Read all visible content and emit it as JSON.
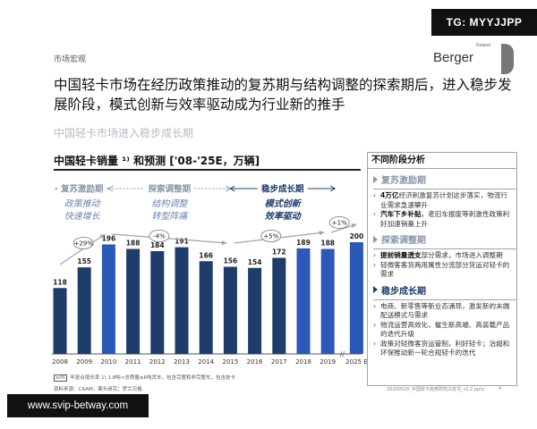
{
  "header": {
    "section": "市场宏观",
    "badge": "TG: MYYJJPP",
    "logo_small": "Roland",
    "logo_big": "Berger"
  },
  "headline": "中国轻卡市场在经历政策推动的复苏期与结构调整的探索期后，进入稳步发展阶段，模式创新与效率驱动成为行业新的推手",
  "subheadline": "中国轻卡市场进入稳步成长期",
  "chart_title": "中国轻卡销量 ¹⁾ 和预测 ['08-'25E，万辆]",
  "chart_data": {
    "type": "bar",
    "title": "中国轻卡销量 ¹⁾ 和预测 ['08-'25E，万辆]",
    "categories": [
      "2008",
      "2009",
      "2010",
      "2011",
      "2012",
      "2013",
      "2014",
      "2015",
      "2016",
      "2017",
      "2018",
      "2019",
      "2025 E"
    ],
    "values": [
      118,
      155,
      196,
      188,
      184,
      191,
      166,
      156,
      154,
      172,
      189,
      188,
      200
    ],
    "unit": "万辆",
    "ylim": [
      0,
      210
    ],
    "colors": {
      "bar_normal": "#1e3d6a",
      "bar_highlight": "#2a59b8",
      "muted": "#8b96a8"
    },
    "phases": [
      {
        "name": "复苏激励期",
        "drivers": [
          "政策推动",
          "快速增长"
        ],
        "cagr": "+29%",
        "from": "2008",
        "to": "2010"
      },
      {
        "name": "探索调整期",
        "drivers": [
          "结构调整",
          "转型阵痛"
        ],
        "cagr": "-4%",
        "from": "2010",
        "to": "2015"
      },
      {
        "name": "稳步成长期",
        "drivers": [
          "模式创新",
          "效率驱动"
        ],
        "cagr": "+5%",
        "from": "2015",
        "to": "2019"
      }
    ],
    "forecast_cagr": "+1%",
    "axis_break": "//"
  },
  "panel": {
    "title": "不同阶段分析",
    "phases": [
      {
        "name": "复苏激励期",
        "muted": true,
        "bullets": [
          {
            "bold": "4万亿",
            "text": "经济刺激复苏计划这步落实，物流行业需求急速攀升"
          },
          {
            "bold": "汽车下乡补贴",
            "text": "，老旧车报废等刺激性政策利好加速销量上升"
          }
        ]
      },
      {
        "name": "探索调整期",
        "muted": true,
        "bullets": [
          {
            "bold": "提前销量透支",
            "text": "部分需求，市场进入调整期"
          },
          {
            "bold": "",
            "text": "轻微客客货两用属性分流部分货运对轻卡的需求"
          }
        ]
      },
      {
        "name": "稳步成长期",
        "muted": false,
        "bullets": [
          {
            "bold": "",
            "text": "电商、新零售等新业态涌现，激发新的末端配送模式与需求"
          },
          {
            "bold": "",
            "text": "物流运营高效化，催生新高端、高装载产品的迭代升级"
          },
          {
            "bold": "",
            "text": "政策对轻微客货运管制，利好轻卡；治超和环保推动新一轮合规轻卡的迭代"
          }
        ]
      }
    ]
  },
  "footnote": {
    "box": "xx%",
    "text": "年复合增长率 1) 1.8吨<总质量≤6吨货车，包含完整和非完整车，包含皮卡"
  },
  "source": "资料来源：CAAM，案头研究；罗兰贝格",
  "docref": "20200520_中国轻卡趋势研究白皮书_v1.2.pptx",
  "page": "4",
  "site": "www.svip-betway.com"
}
